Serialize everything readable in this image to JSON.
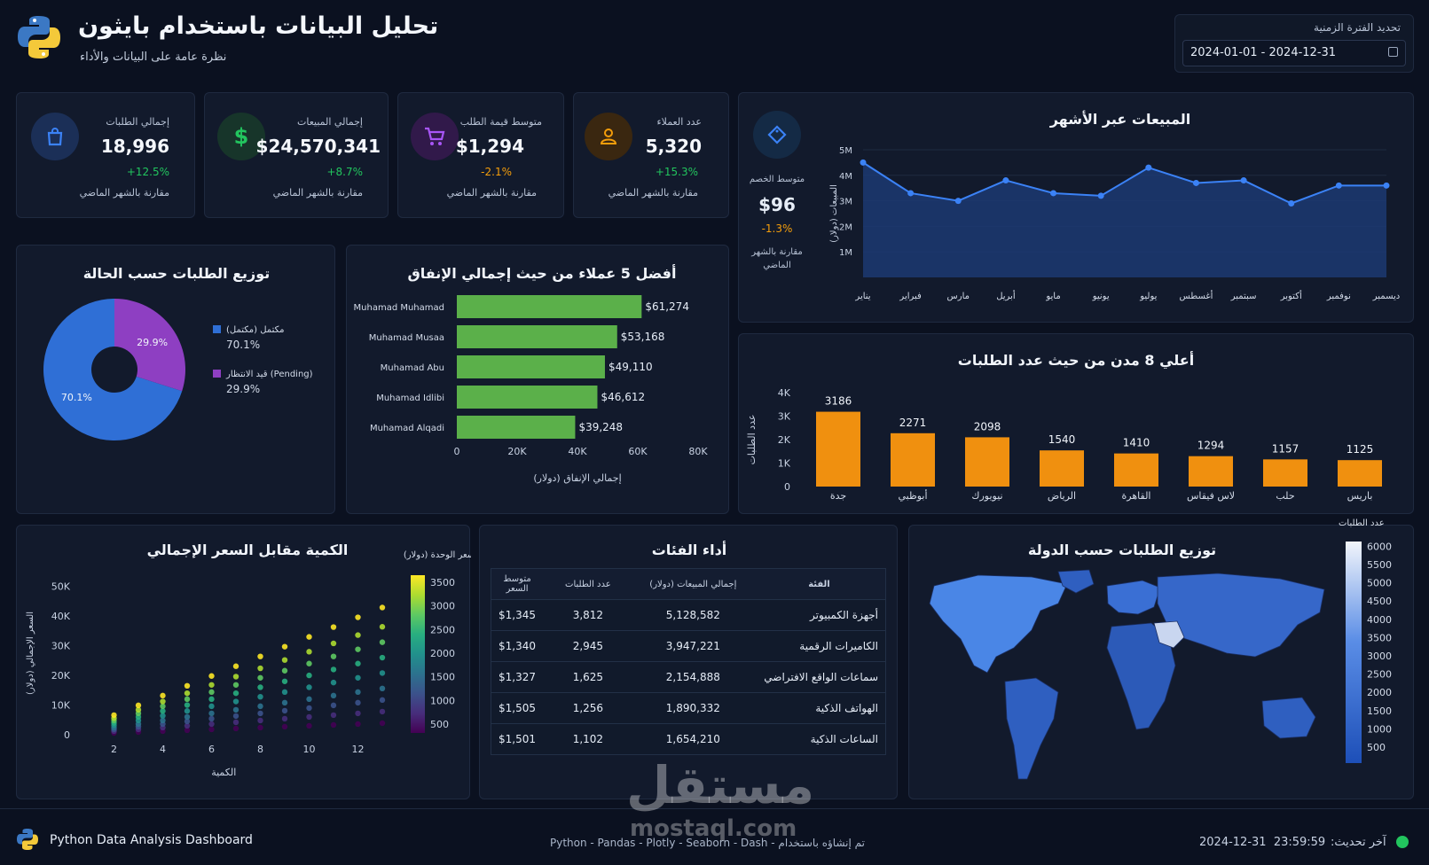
{
  "header": {
    "title": "تحليل البيانات باستخدام بايثون",
    "subtitle": "نظرة عامة على البيانات والأداء",
    "date_label": "تحديد الفترة الزمنية",
    "date_range": "2024-01-01 - 2024-12-31"
  },
  "kpis": [
    {
      "label": "إجمالي الطلبات",
      "value": "18,996",
      "change": "+12.5%",
      "sub": "مقارنة بالشهر الماضي",
      "icon": "shopping-bag-icon",
      "color": "#3b82f6",
      "change_color": "#22c55e"
    },
    {
      "label": "إجمالي المبيعات",
      "value": "$24,570,341",
      "change": "+8.7%",
      "sub": "مقارنة بالشهر الماضي",
      "icon": "dollar-icon",
      "color": "#22c55e",
      "change_color": "#22c55e"
    },
    {
      "label": "متوسط قيمة الطلب",
      "value": "$1,294",
      "change": "-2.1%",
      "sub": "مقارنة بالشهر الماضي",
      "icon": "cart-icon",
      "color": "#a855f7",
      "change_color": "#f59e0b"
    },
    {
      "label": "عدد العملاء",
      "value": "5,320",
      "change": "+15.3%",
      "sub": "مقارنة بالشهر الماضي",
      "icon": "user-icon",
      "color": "#f59e0b",
      "change_color": "#22c55e"
    }
  ],
  "discount": {
    "label": "متوسط الخصم",
    "value": "$96",
    "change": "-1.3%",
    "sub": "مقارنة بالشهر الماضي",
    "icon": "tag-icon"
  },
  "chart_data": [
    {
      "type": "area",
      "title": "المبيعات عبر الأشهر",
      "ylabel": "المبيعات (دولار)",
      "categories": [
        "يناير",
        "فبراير",
        "مارس",
        "أبريل",
        "مايو",
        "يونيو",
        "يوليو",
        "أغسطس",
        "سبتمبر",
        "أكتوبر",
        "نوفمبر",
        "ديسمبر"
      ],
      "values": [
        4.5,
        3.3,
        3.0,
        3.8,
        3.3,
        3.2,
        4.3,
        3.7,
        3.8,
        2.9,
        3.6,
        3.6
      ],
      "yticks": [
        "1M",
        "2M",
        "3M",
        "4M",
        "5M"
      ],
      "ylim": [
        0,
        5
      ],
      "color": "#3b82f6"
    },
    {
      "type": "pie",
      "title": "توزيع الطلبات حسب الحالة",
      "slices": [
        {
          "name": "مكتمل (Completed)",
          "legend": "مكتمل (مكتمل)",
          "value": 70.1,
          "label": "70.1%",
          "color": "#2f6fd6"
        },
        {
          "name": "قيد الانتظار (Pending)",
          "legend": "قيد الانتظار (Pending)",
          "value": 29.9,
          "label": "29.9%",
          "color": "#8e3fc2"
        }
      ]
    },
    {
      "type": "bar",
      "orientation": "horizontal",
      "title": "أفضل 5 عملاء من حيث إجمالي الإنفاق",
      "xlabel": "إجمالي الإنفاق (دولار)",
      "categories": [
        "Muhamad Muhamad",
        "Muhamad Musaa",
        "Muhamad Abu",
        "Muhamad Idlibi",
        "Muhamad Alqadi"
      ],
      "values": [
        61274,
        53168,
        49110,
        46612,
        39248
      ],
      "value_labels": [
        "$61,274",
        "$53,168",
        "$49,110",
        "$46,612",
        "$39,248"
      ],
      "xticks": [
        "0",
        "20K",
        "40K",
        "60K",
        "80K"
      ],
      "xlim": [
        0,
        80000
      ],
      "color": "#5bb04a"
    },
    {
      "type": "bar",
      "title": "أعلي 8 مدن من حيث عدد الطلبات",
      "ylabel": "عدد الطلبات",
      "categories": [
        "جدة",
        "أبوظبي",
        "نيويورك",
        "الرياض",
        "القاهرة",
        "لاس فيقاس",
        "حلب",
        "باريس"
      ],
      "values": [
        3186,
        2271,
        2098,
        1540,
        1410,
        1294,
        1157,
        1125
      ],
      "yticks": [
        "0",
        "1K",
        "2K",
        "3K",
        "4K"
      ],
      "ylim": [
        0,
        4000
      ],
      "color": "#f0900f"
    },
    {
      "type": "scatter",
      "title": "الكمية مقابل السعر الإجمالي",
      "xlabel": "الكمية",
      "ylabel": "السعر الإجمالي (دولار)",
      "colorbar_label": "سعر الوحدة (دولار)",
      "xticks": [
        "2",
        "4",
        "6",
        "8",
        "10",
        "12"
      ],
      "yticks": [
        "0",
        "10K",
        "20K",
        "30K",
        "40K",
        "50K"
      ],
      "colorbar_ticks": [
        "500",
        "1000",
        "1500",
        "2000",
        "2500",
        "3000",
        "3500"
      ],
      "xlim": [
        1,
        13
      ],
      "ylim": [
        0,
        55000
      ],
      "quantities": [
        2,
        3,
        4,
        5,
        6,
        7,
        8,
        9,
        10,
        11,
        12,
        13
      ],
      "unit_prices": [
        300,
        600,
        900,
        1200,
        1600,
        2000,
        2400,
        2800,
        3300
      ]
    },
    {
      "type": "heatmap",
      "title": "توزيع الطلبات حسب الدولة",
      "colorbar_label": "عدد الطلبات",
      "colorbar_ticks": [
        "500",
        "1000",
        "1500",
        "2000",
        "2500",
        "3000",
        "3500",
        "4000",
        "4500",
        "5000",
        "5500",
        "6000"
      ]
    }
  ],
  "table": {
    "title": "أداء الفئات",
    "headers": [
      "الفئة",
      "إجمالي المبيعات (دولار)",
      "عدد الطلبات",
      "متوسط السعر"
    ],
    "rows": [
      [
        "أجهزة الكمبيوتر",
        "5,128,582",
        "3,812",
        "$1,345"
      ],
      [
        "الكاميرات الرقمية",
        "3,947,221",
        "2,945",
        "$1,340"
      ],
      [
        "سماعات الواقع الافتراضي",
        "2,154,888",
        "1,625",
        "$1,327"
      ],
      [
        "الهواتف الذكية",
        "1,890,332",
        "1,256",
        "$1,505"
      ],
      [
        "الساعات الذكية",
        "1,654,210",
        "1,102",
        "$1,501"
      ]
    ]
  },
  "footer": {
    "app_name": "Python Data Analysis Dashboard",
    "tech": "تم إنشاؤه باستخدام - Python - Pandas - Plotly - Seaborn - Dash",
    "updated_label": "آخر تحديث:",
    "updated_value": "2024-12-31  23:59:59",
    "watermark": "مستقل",
    "watermark_url": "mostaql.com"
  }
}
